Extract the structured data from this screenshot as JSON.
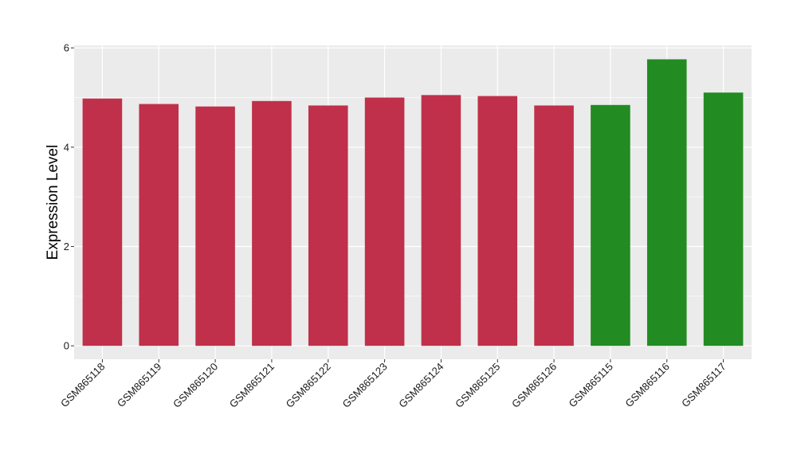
{
  "chart_data": {
    "type": "bar",
    "title": "",
    "xlabel": "",
    "ylabel": "Expression Level",
    "categories": [
      "GSM865118",
      "GSM865119",
      "GSM865120",
      "GSM865121",
      "GSM865122",
      "GSM865123",
      "GSM865124",
      "GSM865125",
      "GSM865126",
      "GSM865115",
      "GSM865116",
      "GSM865117"
    ],
    "values": [
      4.98,
      4.87,
      4.82,
      4.93,
      4.84,
      5.0,
      5.05,
      5.03,
      4.84,
      4.85,
      5.77,
      5.1
    ],
    "bar_colors": [
      "#C0304A",
      "#C0304A",
      "#C0304A",
      "#C0304A",
      "#C0304A",
      "#C0304A",
      "#C0304A",
      "#C0304A",
      "#C0304A",
      "#228B22",
      "#228B22",
      "#228B22"
    ],
    "ylim": [
      -0.27,
      6.05
    ],
    "yticks": [
      0,
      2,
      4,
      6
    ],
    "grid": true,
    "legend": "none",
    "panel_background": "#EBEBEB",
    "grid_color": "#FFFFFF"
  }
}
